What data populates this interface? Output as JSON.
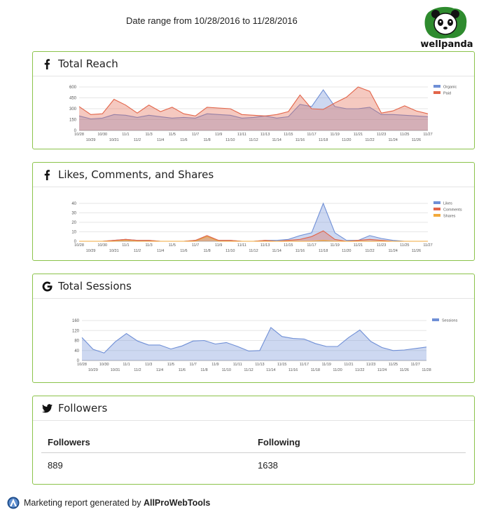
{
  "header": {
    "date_range": "Date range from 10/28/2016 to 11/28/2016",
    "logo_text": "wellpanda"
  },
  "colors": {
    "border": "#8bc34a",
    "blue": "#6f8fd6",
    "red": "#e2654a",
    "orange": "#f2a93b"
  },
  "panels": {
    "reach": {
      "title": "Total Reach",
      "icon": "facebook-icon"
    },
    "likes": {
      "title": "Likes, Comments, and Shares",
      "icon": "facebook-icon"
    },
    "sessions": {
      "title": "Total Sessions",
      "icon": "google-icon"
    },
    "followers": {
      "title": "Followers",
      "icon": "twitter-icon"
    }
  },
  "followers_table": {
    "headers": [
      "Followers",
      "Following"
    ],
    "rows": [
      [
        "889",
        "1638"
      ]
    ]
  },
  "footer": {
    "prefix": "Marketing report generated by",
    "brand": "AllProWebTools"
  },
  "chart_data": [
    {
      "id": "reach",
      "type": "area",
      "title": "",
      "ylim": [
        0,
        600
      ],
      "yticks": [
        0,
        150,
        300,
        450,
        600
      ],
      "x": [
        "10/28",
        "10/29",
        "10/30",
        "10/31",
        "11/1",
        "11/2",
        "11/3",
        "11/4",
        "11/5",
        "11/6",
        "11/7",
        "11/8",
        "11/9",
        "11/10",
        "11/11",
        "11/12",
        "11/13",
        "11/14",
        "11/15",
        "11/16",
        "11/17",
        "11/18",
        "11/19",
        "11/20",
        "11/21",
        "11/22",
        "11/23",
        "11/24",
        "11/25",
        "11/26",
        "11/27"
      ],
      "xtick_labels": [
        "10/28",
        "10/29",
        "10/30",
        "10/31",
        "11/1",
        "11/2",
        "11/3",
        "11/4",
        "11/5",
        "11/6",
        "11/7",
        "11/8",
        "11/9",
        "11/10",
        "11/11",
        "11/12",
        "11/13",
        "11/14",
        "11/15",
        "11/16",
        "11/17",
        "11/18",
        "11/19",
        "11/20",
        "11/21",
        "11/22",
        "11/23",
        "11/24",
        "11/25",
        "11/26",
        "11/27"
      ],
      "legend_position": "right",
      "series": [
        {
          "name": "Organic",
          "color": "#6f8fd6",
          "values": [
            200,
            160,
            170,
            220,
            210,
            180,
            210,
            190,
            170,
            180,
            170,
            230,
            220,
            210,
            170,
            180,
            200,
            170,
            190,
            360,
            330,
            560,
            330,
            300,
            300,
            320,
            220,
            220,
            210,
            200,
            190
          ]
        },
        {
          "name": "Paid",
          "color": "#e2654a",
          "values": [
            330,
            220,
            230,
            430,
            350,
            240,
            350,
            260,
            320,
            230,
            200,
            320,
            310,
            300,
            220,
            210,
            200,
            220,
            260,
            490,
            300,
            290,
            380,
            460,
            600,
            540,
            240,
            270,
            340,
            270,
            230
          ]
        }
      ]
    },
    {
      "id": "likes",
      "type": "area",
      "title": "",
      "ylim": [
        0,
        40
      ],
      "yticks": [
        0,
        10,
        20,
        30,
        40
      ],
      "x": [
        "10/28",
        "10/29",
        "10/30",
        "10/31",
        "11/1",
        "11/2",
        "11/3",
        "11/4",
        "11/5",
        "11/6",
        "11/7",
        "11/8",
        "11/9",
        "11/10",
        "11/11",
        "11/12",
        "11/13",
        "11/14",
        "11/15",
        "11/16",
        "11/17",
        "11/18",
        "11/19",
        "11/20",
        "11/21",
        "11/22",
        "11/23",
        "11/24",
        "11/25",
        "11/26",
        "11/27"
      ],
      "xtick_labels": [
        "10/28",
        "10/29",
        "10/30",
        "10/31",
        "11/1",
        "11/2",
        "11/3",
        "11/4",
        "11/5",
        "11/6",
        "11/7",
        "11/8",
        "11/9",
        "11/10",
        "11/11",
        "11/12",
        "11/13",
        "11/14",
        "11/15",
        "11/16",
        "11/17",
        "11/18",
        "11/19",
        "11/20",
        "11/21",
        "11/22",
        "11/23",
        "11/24",
        "11/25",
        "11/26",
        "11/27"
      ],
      "legend_position": "right",
      "series": [
        {
          "name": "Likes",
          "color": "#6f8fd6",
          "values": [
            0,
            0,
            0,
            1,
            2,
            1,
            1,
            0,
            0,
            0,
            1,
            5,
            1,
            1,
            0,
            0,
            1,
            1,
            2,
            6,
            9,
            40,
            9,
            1,
            1,
            6,
            3,
            1,
            0,
            0,
            0
          ]
        },
        {
          "name": "Comments",
          "color": "#e2654a",
          "values": [
            0,
            0,
            0,
            1,
            2,
            1,
            1,
            0,
            0,
            0,
            1,
            6,
            1,
            1,
            0,
            0,
            1,
            0,
            1,
            2,
            5,
            11,
            2,
            0,
            1,
            2,
            1,
            0,
            0,
            0,
            0
          ]
        },
        {
          "name": "Shares",
          "color": "#f2a93b",
          "values": [
            0,
            0,
            0,
            0,
            1,
            0,
            0,
            0,
            0,
            0,
            0,
            5,
            0,
            0,
            0,
            0,
            0,
            0,
            0,
            0,
            0,
            1,
            0,
            0,
            0,
            0,
            0,
            0,
            0,
            0,
            0
          ]
        }
      ]
    },
    {
      "id": "sessions",
      "type": "area",
      "title": "",
      "ylim": [
        0,
        160
      ],
      "yticks": [
        0,
        40,
        80,
        120,
        160
      ],
      "x": [
        "10/28",
        "10/29",
        "10/30",
        "10/31",
        "11/1",
        "11/2",
        "11/3",
        "11/4",
        "11/5",
        "11/6",
        "11/7",
        "11/8",
        "11/9",
        "11/10",
        "11/11",
        "11/12",
        "11/13",
        "11/14",
        "11/15",
        "11/16",
        "11/17",
        "11/18",
        "11/19",
        "11/20",
        "11/21",
        "11/22",
        "11/23",
        "11/24",
        "11/25",
        "11/26",
        "11/27",
        "11/28"
      ],
      "xtick_labels": [
        "10/28",
        "10/29",
        "10/30",
        "10/31",
        "11/1",
        "11/2",
        "11/3",
        "11/4",
        "11/5",
        "11/6",
        "11/7",
        "11/8",
        "11/9",
        "11/10",
        "11/11",
        "11/12",
        "11/13",
        "11/14",
        "11/15",
        "11/16",
        "11/17",
        "11/18",
        "11/19",
        "11/20",
        "11/21",
        "11/22",
        "11/23",
        "11/24",
        "11/25",
        "11/26",
        "11/27",
        "11/28"
      ],
      "legend_position": "right",
      "series": [
        {
          "name": "Sessions",
          "color": "#6f8fd6",
          "values": [
            92,
            45,
            30,
            75,
            108,
            78,
            62,
            62,
            46,
            58,
            78,
            80,
            66,
            72,
            56,
            38,
            40,
            132,
            96,
            88,
            86,
            68,
            56,
            56,
            92,
            122,
            76,
            52,
            40,
            42,
            48,
            54
          ]
        }
      ]
    }
  ]
}
